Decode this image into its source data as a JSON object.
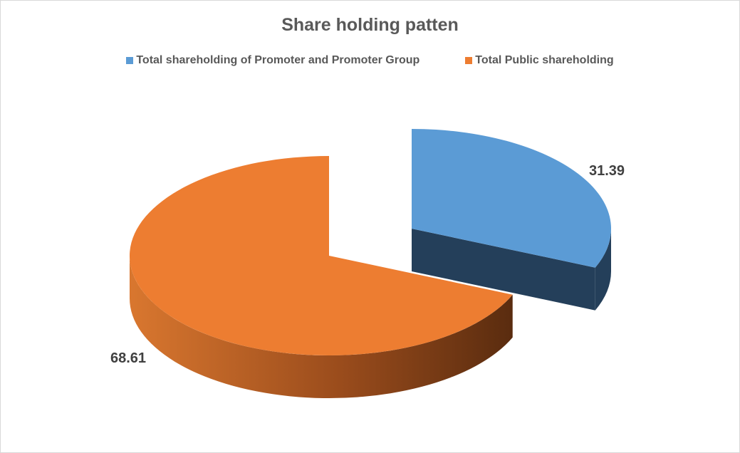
{
  "chart_data": {
    "type": "pie",
    "style": "3d-exploded",
    "title": "Share holding patten",
    "legend_position": "top",
    "series": [
      {
        "name": "Total shareholding of Promoter and Promoter Group",
        "value": 31.39,
        "label": "31.39",
        "color": "#5B9BD5",
        "side_color": "#243F5A",
        "exploded": true
      },
      {
        "name": "Total Public shareholding",
        "value": 68.61,
        "label": "68.61",
        "color": "#ED7D31",
        "side_color": "#7A3A12",
        "exploded": false
      }
    ]
  }
}
